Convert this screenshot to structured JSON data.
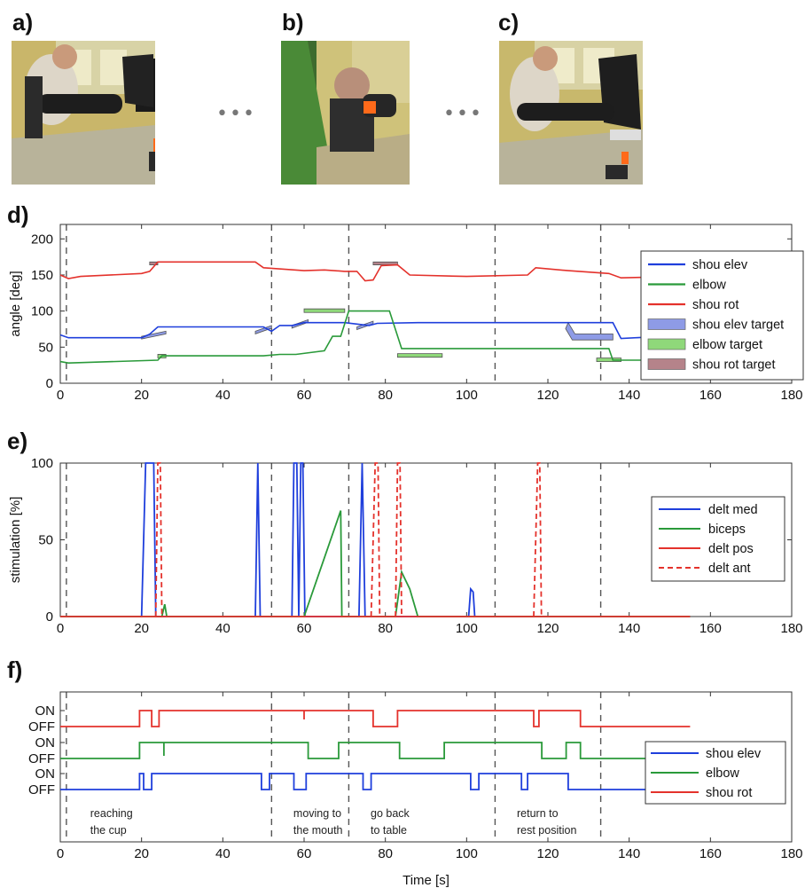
{
  "panel_labels": {
    "a": "a)",
    "b": "b)",
    "c": "c)",
    "d": "d)",
    "e": "e)",
    "f": "f)"
  },
  "ellipsis": "•••",
  "photos": [
    {
      "label": "a)"
    },
    {
      "label": "b)"
    },
    {
      "label": "c)"
    }
  ],
  "colors": {
    "blue": "#1f3fdc",
    "green": "#2a9a3a",
    "red": "#e4322c",
    "blue_target": "#8e9be6",
    "green_target": "#8fd87a",
    "red_target": "#b5838a",
    "dashed": "#555555"
  },
  "events_x": [
    1.5,
    52,
    71,
    107,
    133
  ],
  "chart_data": [
    {
      "id": "d",
      "type": "line",
      "ylabel": "angle [deg]",
      "xlabel": "",
      "xlim": [
        0,
        180
      ],
      "ylim": [
        0,
        220
      ],
      "xticks": [
        0,
        20,
        40,
        60,
        80,
        100,
        120,
        140,
        160,
        180
      ],
      "yticks": [
        0,
        50,
        100,
        150,
        200
      ],
      "legend_position": "right",
      "legend": [
        "shou elev",
        "elbow",
        "shou rot",
        "shou elev target",
        "elbow target",
        "shou rot target"
      ],
      "series": [
        {
          "name": "shou elev",
          "color": "blue",
          "points": [
            [
              0,
              67
            ],
            [
              2,
              63
            ],
            [
              20,
              63
            ],
            [
              22,
              68
            ],
            [
              24,
              78
            ],
            [
              50,
              78
            ],
            [
              52,
              72
            ],
            [
              54,
              80
            ],
            [
              57,
              80
            ],
            [
              60,
              84
            ],
            [
              70,
              84
            ],
            [
              73,
              82
            ],
            [
              76,
              80
            ],
            [
              78,
              83
            ],
            [
              88,
              84
            ],
            [
              136,
              84
            ],
            [
              138,
              62
            ],
            [
              145,
              64
            ]
          ]
        },
        {
          "name": "elbow",
          "color": "green",
          "points": [
            [
              0,
              30
            ],
            [
              2,
              28
            ],
            [
              24,
              32
            ],
            [
              25,
              38
            ],
            [
              50,
              38
            ],
            [
              54,
              40
            ],
            [
              58,
              40
            ],
            [
              65,
              45
            ],
            [
              67,
              65
            ],
            [
              69,
              65
            ],
            [
              71,
              100
            ],
            [
              81,
              100
            ],
            [
              84,
              48
            ],
            [
              135,
              48
            ],
            [
              136,
              32
            ],
            [
              145,
              32
            ]
          ]
        },
        {
          "name": "shou rot",
          "color": "red",
          "points": [
            [
              0,
              150
            ],
            [
              2,
              145
            ],
            [
              5,
              148
            ],
            [
              20,
              152
            ],
            [
              22,
              155
            ],
            [
              24,
              168
            ],
            [
              48,
              168
            ],
            [
              50,
              160
            ],
            [
              55,
              158
            ],
            [
              60,
              156
            ],
            [
              65,
              157
            ],
            [
              70,
              155
            ],
            [
              73,
              155
            ],
            [
              75,
              142
            ],
            [
              77,
              143
            ],
            [
              79,
              163
            ],
            [
              83,
              164
            ],
            [
              86,
              150
            ],
            [
              100,
              148
            ],
            [
              115,
              150
            ],
            [
              117,
              160
            ],
            [
              125,
              156
            ],
            [
              135,
              152
            ],
            [
              138,
              146
            ],
            [
              145,
              147
            ]
          ]
        }
      ],
      "targets": [
        {
          "name": "shou elev target",
          "color": "blue_target",
          "blocks": [
            [
              20,
              26,
              65,
              72,
              "diag"
            ],
            [
              48,
              52,
              72,
              80,
              "diag"
            ],
            [
              57,
              61,
              80,
              88,
              "diag"
            ],
            [
              73,
              77,
              78,
              86,
              "diag"
            ],
            [
              125,
              136,
              60,
              84,
              "diag"
            ]
          ]
        },
        {
          "name": "elbow target",
          "color": "green_target",
          "blocks": [
            [
              24,
              26,
              35,
              40,
              "flat"
            ],
            [
              60,
              70,
              98,
              103,
              "flat"
            ],
            [
              83,
              94,
              36,
              41,
              "flat"
            ],
            [
              132,
              138,
              30,
              35,
              "flat"
            ]
          ]
        },
        {
          "name": "shou rot target",
          "color": "red_target",
          "blocks": [
            [
              22,
              24,
              164,
              168,
              "flat"
            ],
            [
              77,
              83,
              164,
              168,
              "flat"
            ]
          ]
        }
      ]
    },
    {
      "id": "e",
      "type": "line",
      "ylabel": "stimulation [%]",
      "xlabel": "",
      "xlim": [
        0,
        180
      ],
      "ylim": [
        0,
        100
      ],
      "xticks": [
        0,
        20,
        40,
        60,
        80,
        100,
        120,
        140,
        160,
        180
      ],
      "yticks": [
        0,
        50,
        100
      ],
      "legend_position": "right",
      "legend": [
        "delt med",
        "biceps",
        "delt pos",
        "delt ant"
      ],
      "series": [
        {
          "name": "delt med",
          "color": "blue",
          "dash": false,
          "points": [
            [
              0,
              0
            ],
            [
              20,
              0
            ],
            [
              21,
              100
            ],
            [
              23,
              100
            ],
            [
              23.5,
              0
            ],
            [
              48,
              0
            ],
            [
              48.6,
              100
            ],
            [
              49.2,
              0
            ],
            [
              57,
              0
            ],
            [
              57.5,
              100
            ],
            [
              58.2,
              100
            ],
            [
              58.7,
              0
            ],
            [
              59.2,
              100
            ],
            [
              59.7,
              100
            ],
            [
              60.2,
              0
            ],
            [
              73.5,
              0
            ],
            [
              74.3,
              100
            ],
            [
              75,
              0
            ],
            [
              100.5,
              0
            ],
            [
              101,
              18
            ],
            [
              101.6,
              16
            ],
            [
              102,
              0
            ],
            [
              155,
              0
            ]
          ]
        },
        {
          "name": "biceps",
          "color": "green",
          "dash": false,
          "points": [
            [
              0,
              0
            ],
            [
              25,
              0
            ],
            [
              25.7,
              8
            ],
            [
              26.2,
              0
            ],
            [
              60,
              0
            ],
            [
              69,
              69
            ],
            [
              69.3,
              0
            ],
            [
              82.5,
              0
            ],
            [
              84,
              29
            ],
            [
              86,
              18
            ],
            [
              88,
              0
            ],
            [
              155,
              0
            ]
          ]
        },
        {
          "name": "delt pos",
          "color": "red",
          "dash": false,
          "points": [
            [
              0,
              0
            ],
            [
              155,
              0
            ]
          ]
        },
        {
          "name": "delt ant",
          "color": "red",
          "dash": true,
          "points": [
            [
              23.5,
              0
            ],
            [
              24,
              100
            ],
            [
              24.6,
              100
            ],
            [
              25,
              0
            ]
          ]
        },
        {
          "name": "delt ant",
          "color": "red",
          "dash": true,
          "points": [
            [
              76.5,
              0
            ],
            [
              77.5,
              100
            ],
            [
              78.2,
              100
            ],
            [
              78.6,
              0
            ]
          ]
        },
        {
          "name": "delt ant",
          "color": "red",
          "dash": true,
          "points": [
            [
              82.5,
              0
            ],
            [
              83,
              100
            ],
            [
              83.6,
              100
            ],
            [
              84,
              0
            ]
          ]
        },
        {
          "name": "delt ant",
          "color": "red",
          "dash": true,
          "points": [
            [
              116.5,
              0
            ],
            [
              117.5,
              100
            ],
            [
              118,
              100
            ],
            [
              118.4,
              0
            ]
          ]
        }
      ]
    },
    {
      "id": "f",
      "type": "step",
      "xlabel": "Time [s]",
      "xlim": [
        0,
        180
      ],
      "xticks": [
        0,
        20,
        40,
        60,
        80,
        100,
        120,
        140,
        160,
        180
      ],
      "row_labels": [
        "ON",
        "OFF"
      ],
      "legend_position": "right",
      "legend": [
        "shou elev",
        "elbow",
        "shou rot"
      ],
      "series": [
        {
          "name": "shou rot",
          "color": "red",
          "row": 0,
          "transitions": [
            [
              0,
              0
            ],
            [
              19.5,
              1
            ],
            [
              22.5,
              0
            ],
            [
              24.3,
              1
            ],
            [
              77,
              0
            ],
            [
              83,
              1
            ],
            [
              116.5,
              0
            ],
            [
              117.8,
              1
            ],
            [
              128,
              0
            ],
            [
              155,
              0
            ]
          ],
          "spike": 60
        },
        {
          "name": "elbow",
          "color": "green",
          "row": 1,
          "transitions": [
            [
              0,
              0
            ],
            [
              19.5,
              1
            ],
            [
              61,
              0
            ],
            [
              68.5,
              1
            ],
            [
              83.5,
              0
            ],
            [
              94.5,
              1
            ],
            [
              118.5,
              0
            ],
            [
              124.5,
              1
            ],
            [
              128,
              0
            ],
            [
              145,
              0
            ]
          ],
          "spike": 25.5
        },
        {
          "name": "shou elev",
          "color": "blue",
          "row": 2,
          "transitions": [
            [
              0,
              0
            ],
            [
              19.5,
              1
            ],
            [
              20.5,
              0
            ],
            [
              22.5,
              1
            ],
            [
              49.5,
              0
            ],
            [
              51.5,
              1
            ],
            [
              57.5,
              0
            ],
            [
              60.5,
              1
            ],
            [
              74.5,
              0
            ],
            [
              76.5,
              1
            ],
            [
              101,
              0
            ],
            [
              103,
              1
            ],
            [
              113.5,
              0
            ],
            [
              115,
              1
            ],
            [
              125,
              0
            ],
            [
              145,
              0
            ]
          ]
        }
      ],
      "annotations": [
        {
          "x": 3,
          "lines": [
            "reaching",
            "the cup"
          ]
        },
        {
          "x": 53,
          "lines": [
            "moving to",
            "the mouth"
          ]
        },
        {
          "x": 72,
          "lines": [
            "go back",
            "to table"
          ]
        },
        {
          "x": 108,
          "lines": [
            "return to",
            "rest position"
          ]
        }
      ]
    }
  ]
}
